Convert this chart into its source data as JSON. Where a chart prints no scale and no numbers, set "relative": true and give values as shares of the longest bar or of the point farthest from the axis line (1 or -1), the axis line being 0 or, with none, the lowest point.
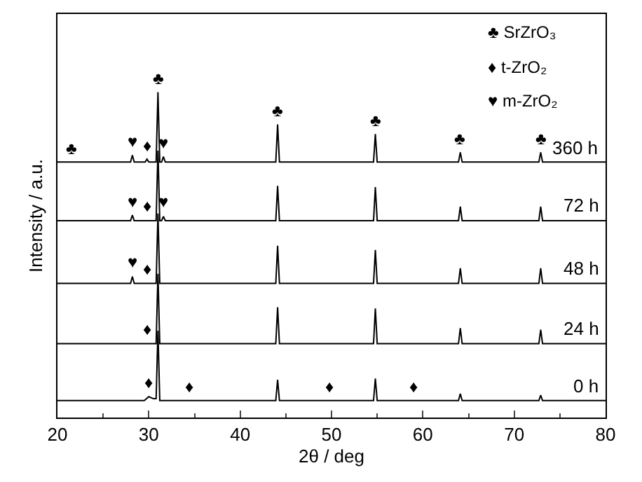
{
  "chart_data": {
    "type": "line",
    "relative": true,
    "xlabel": "2θ / deg",
    "ylabel": "Intensity / a.u.",
    "xlim": [
      20,
      80
    ],
    "xticks": [
      20,
      30,
      40,
      50,
      60,
      70,
      80
    ],
    "tick_labels": "x",
    "legend": false,
    "line_style": "solid",
    "series": [
      {
        "name": "360 h",
        "color": "#000000",
        "x": [
          20,
          28.0,
          28.2,
          28.4,
          29.6,
          29.8,
          30.0,
          30.8,
          31.0,
          31.2,
          31.4,
          31.6,
          31.8,
          43.9,
          44.1,
          44.3,
          54.6,
          54.8,
          55.0,
          63.9,
          64.1,
          64.3,
          72.7,
          72.9,
          73.1,
          80
        ],
        "values": [
          0.785,
          0.785,
          0.806,
          0.785,
          0.785,
          0.794,
          0.785,
          0.785,
          1.0,
          0.785,
          0.785,
          0.802,
          0.785,
          0.785,
          0.901,
          0.785,
          0.785,
          0.871,
          0.785,
          0.785,
          0.815,
          0.785,
          0.785,
          0.815,
          0.785,
          0.785
        ]
      },
      {
        "name": "72 h",
        "color": "#000000",
        "x": [
          20,
          28.0,
          28.2,
          28.4,
          30.8,
          31.0,
          31.2,
          31.4,
          31.6,
          31.8,
          43.9,
          44.1,
          44.3,
          54.6,
          54.8,
          55.0,
          63.9,
          64.1,
          64.3,
          72.7,
          72.9,
          73.1,
          80
        ],
        "values": [
          0.605,
          0.605,
          0.622,
          0.605,
          0.605,
          0.82,
          0.605,
          0.605,
          0.618,
          0.605,
          0.605,
          0.712,
          0.605,
          0.605,
          0.708,
          0.605,
          0.605,
          0.648,
          0.605,
          0.605,
          0.648,
          0.605,
          0.605
        ]
      },
      {
        "name": "48 h",
        "color": "#000000",
        "x": [
          20,
          28.0,
          28.2,
          28.4,
          30.8,
          31.0,
          31.2,
          43.9,
          44.1,
          44.3,
          54.6,
          54.8,
          55.0,
          63.9,
          64.1,
          64.3,
          72.7,
          72.9,
          73.1,
          80
        ],
        "values": [
          0.412,
          0.412,
          0.433,
          0.412,
          0.412,
          0.627,
          0.412,
          0.412,
          0.528,
          0.412,
          0.412,
          0.515,
          0.412,
          0.412,
          0.459,
          0.412,
          0.412,
          0.459,
          0.412,
          0.412
        ]
      },
      {
        "name": "24 h",
        "color": "#000000",
        "x": [
          20,
          30.8,
          31.0,
          31.2,
          43.9,
          44.1,
          44.3,
          54.6,
          54.8,
          55.0,
          63.9,
          64.1,
          64.3,
          72.7,
          72.9,
          73.1,
          80
        ],
        "values": [
          0.227,
          0.227,
          0.442,
          0.227,
          0.227,
          0.339,
          0.227,
          0.227,
          0.335,
          0.227,
          0.227,
          0.275,
          0.227,
          0.227,
          0.27,
          0.227,
          0.227
        ]
      },
      {
        "name": "0 h",
        "color": "#000000",
        "x": [
          20,
          29.5,
          30.0,
          30.5,
          30.8,
          31.0,
          31.2,
          43.9,
          44.1,
          44.3,
          54.6,
          54.8,
          55.0,
          63.9,
          64.1,
          64.3,
          72.7,
          72.9,
          73.1,
          80
        ],
        "values": [
          0.052,
          0.052,
          0.064,
          0.058,
          0.058,
          0.267,
          0.052,
          0.052,
          0.116,
          0.052,
          0.052,
          0.12,
          0.052,
          0.052,
          0.073,
          0.052,
          0.052,
          0.069,
          0.052,
          0.052
        ]
      }
    ],
    "annotations": [
      "♣ SrZrO₃",
      "♦ t-ZrO₂",
      "♥ m-ZrO₂",
      {
        "text": "♣",
        "x": 21.5,
        "y": 0.785
      },
      {
        "text": "♥",
        "x": 28.2,
        "y": 0.806
      },
      {
        "text": "♦",
        "x": 29.8,
        "y": 0.794
      },
      {
        "text": "♣",
        "x": 31.0,
        "y": 1.0
      },
      {
        "text": "♥",
        "x": 31.6,
        "y": 0.802
      },
      {
        "text": "♣",
        "x": 44.1,
        "y": 0.901
      },
      {
        "text": "♣",
        "x": 54.8,
        "y": 0.871
      },
      {
        "text": "♣",
        "x": 64.1,
        "y": 0.815
      },
      {
        "text": "♣",
        "x": 72.9,
        "y": 0.815
      },
      {
        "text": "♥",
        "x": 28.2,
        "y": 0.622
      },
      {
        "text": "♦",
        "x": 29.8,
        "y": 0.605
      },
      {
        "text": "♥",
        "x": 31.6,
        "y": 0.618
      },
      {
        "text": "♥",
        "x": 28.2,
        "y": 0.433
      },
      {
        "text": "♦",
        "x": 29.8,
        "y": 0.412
      },
      {
        "text": "♦",
        "x": 29.8,
        "y": 0.227
      },
      {
        "text": "♦",
        "x": 30.0,
        "y": 0.064
      },
      {
        "text": "♦",
        "x": 34.5,
        "y": 0.052
      },
      {
        "text": "♦",
        "x": 49.8,
        "y": 0.052
      },
      {
        "text": "♦",
        "x": 59.0,
        "y": 0.052
      }
    ]
  }
}
